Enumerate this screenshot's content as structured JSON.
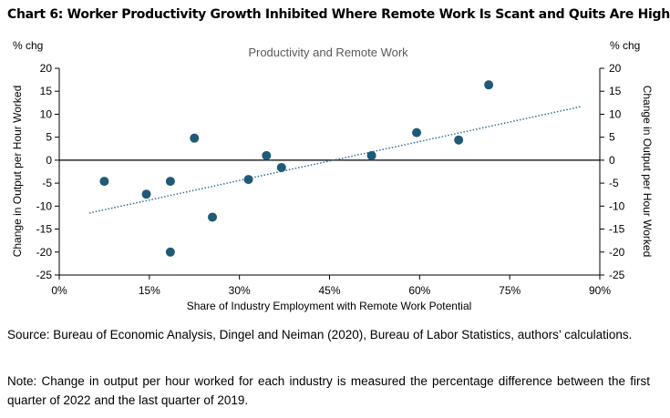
{
  "chart_title": "Chart 6: Worker Productivity Growth Inhibited Where Remote Work Is Scant and Quits Are High",
  "chart_data": {
    "type": "scatter",
    "title": "Productivity and Remote Work",
    "xlabel": "Share of Industry Employment with Remote Work Potential",
    "ylabel_left": "Change in Output per Hour Worked",
    "ylabel_right": "Change in Output per Hour Worked",
    "y_unit_left": "% chg",
    "y_unit_right": "% chg",
    "xlim": [
      0,
      90
    ],
    "ylim": [
      -25,
      20
    ],
    "x_ticks": [
      0,
      15,
      30,
      45,
      60,
      75,
      90
    ],
    "x_tick_labels": [
      "0%",
      "15%",
      "30%",
      "45%",
      "60%",
      "75%",
      "90%"
    ],
    "y_ticks": [
      -25,
      -20,
      -15,
      -10,
      -5,
      0,
      5,
      10,
      15,
      20
    ],
    "y_tick_labels": [
      "-25",
      "-20",
      "-15",
      "-10",
      "-5",
      "0",
      "5",
      "10",
      "15",
      "20"
    ],
    "points": [
      {
        "x": 7.5,
        "y": -4.6
      },
      {
        "x": 14.5,
        "y": -7.4
      },
      {
        "x": 18.5,
        "y": -4.6
      },
      {
        "x": 18.5,
        "y": -20.0
      },
      {
        "x": 22.5,
        "y": 4.8
      },
      {
        "x": 25.5,
        "y": -12.4
      },
      {
        "x": 31.5,
        "y": -4.2
      },
      {
        "x": 34.5,
        "y": 1.0
      },
      {
        "x": 37.0,
        "y": -1.6
      },
      {
        "x": 52.0,
        "y": 1.0
      },
      {
        "x": 59.5,
        "y": 6.0
      },
      {
        "x": 66.5,
        "y": 4.4
      },
      {
        "x": 71.5,
        "y": 16.4
      }
    ],
    "trendline": {
      "x": [
        5,
        87
      ],
      "y": [
        -11.5,
        11.7
      ]
    },
    "grid": false,
    "colors": {
      "points": "#1f5a77",
      "trendline": "#2f6f97",
      "axis": "#000000",
      "zero_line": "#000000",
      "title": "#595959"
    }
  },
  "source_text": "Source: Bureau of Economic Analysis, Dingel and Neiman (2020), Bureau of Labor Statistics,  authors’ calculations.",
  "note_text": "Note: Change in output per hour worked for each industry is measured the percentage difference between the first quarter of 2022 and the last quarter of 2019."
}
